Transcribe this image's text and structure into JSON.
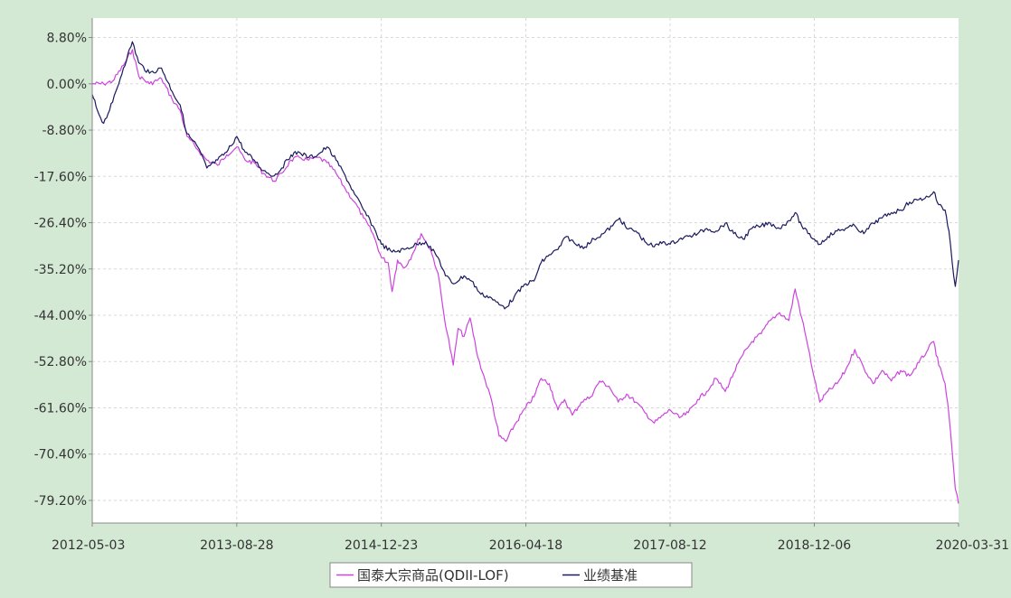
{
  "chart_data": {
    "type": "line",
    "title": "",
    "xlabel": "",
    "ylabel": "",
    "x_ticks": [
      "2012-05-03",
      "2013-08-28",
      "2014-12-23",
      "2016-04-18",
      "2017-08-12",
      "2018-12-06",
      "2020-03-31"
    ],
    "y_ticks": [
      "8.80%",
      "0.00%",
      "-8.80%",
      "-17.60%",
      "-26.40%",
      "-35.20%",
      "-44.00%",
      "-52.80%",
      "-61.60%",
      "-70.40%",
      "-79.20%"
    ],
    "xlim": [
      "2012-05-03",
      "2020-03-31"
    ],
    "ylim": [
      -83.5,
      12.5
    ],
    "grid": true,
    "legend_position": "bottom-center",
    "series": [
      {
        "name": "国泰大宗商品(QDII-LOF)",
        "color": "#cc44dd",
        "points": [
          [
            "2012-05-03",
            0.0
          ],
          [
            "2012-06-10",
            0.0
          ],
          [
            "2012-07-10",
            0.5
          ],
          [
            "2012-08-15",
            3.5
          ],
          [
            "2012-09-14",
            6.5
          ],
          [
            "2012-10-05",
            1.5
          ],
          [
            "2012-11-10",
            0.0
          ],
          [
            "2012-12-20",
            1.0
          ],
          [
            "2013-01-25",
            -3.0
          ],
          [
            "2013-02-20",
            -5.0
          ],
          [
            "2013-03-15",
            -10.0
          ],
          [
            "2013-04-20",
            -12.5
          ],
          [
            "2013-05-20",
            -14.5
          ],
          [
            "2013-06-25",
            -15.5
          ],
          [
            "2013-07-25",
            -13.5
          ],
          [
            "2013-08-28",
            -12.0
          ],
          [
            "2013-09-25",
            -14.5
          ],
          [
            "2013-10-25",
            -15.0
          ],
          [
            "2013-11-25",
            -17.0
          ],
          [
            "2013-12-31",
            -18.5
          ],
          [
            "2014-01-25",
            -17.0
          ],
          [
            "2014-02-25",
            -14.5
          ],
          [
            "2014-03-25",
            -14.0
          ],
          [
            "2014-04-25",
            -14.5
          ],
          [
            "2014-05-25",
            -14.0
          ],
          [
            "2014-06-25",
            -15.0
          ],
          [
            "2014-07-25",
            -17.0
          ],
          [
            "2014-08-25",
            -20.0
          ],
          [
            "2014-09-25",
            -22.5
          ],
          [
            "2014-10-25",
            -25.5
          ],
          [
            "2014-11-25",
            -28.5
          ],
          [
            "2014-12-23",
            -33.0
          ],
          [
            "2015-01-15",
            -34.0
          ],
          [
            "2015-01-28",
            -39.5
          ],
          [
            "2015-02-15",
            -33.5
          ],
          [
            "2015-03-10",
            -35.0
          ],
          [
            "2015-04-05",
            -32.5
          ],
          [
            "2015-05-05",
            -28.5
          ],
          [
            "2015-06-05",
            -31.5
          ],
          [
            "2015-06-30",
            -36.0
          ],
          [
            "2015-07-20",
            -44.0
          ],
          [
            "2015-08-20",
            -53.5
          ],
          [
            "2015-09-05",
            -46.5
          ],
          [
            "2015-09-25",
            -48.0
          ],
          [
            "2015-10-15",
            -44.5
          ],
          [
            "2015-11-10",
            -52.0
          ],
          [
            "2015-12-05",
            -56.5
          ],
          [
            "2015-12-25",
            -60.0
          ],
          [
            "2016-01-20",
            -67.0
          ],
          [
            "2016-02-12",
            -68.0
          ],
          [
            "2016-03-10",
            -65.0
          ],
          [
            "2016-04-18",
            -61.5
          ],
          [
            "2016-05-15",
            -59.5
          ],
          [
            "2016-06-08",
            -56.0
          ],
          [
            "2016-07-05",
            -57.0
          ],
          [
            "2016-08-03",
            -62.0
          ],
          [
            "2016-08-25",
            -60.0
          ],
          [
            "2016-09-20",
            -63.0
          ],
          [
            "2016-10-20",
            -60.5
          ],
          [
            "2016-11-20",
            -59.5
          ],
          [
            "2016-12-20",
            -56.5
          ],
          [
            "2017-01-20",
            -57.5
          ],
          [
            "2017-02-20",
            -60.5
          ],
          [
            "2017-03-20",
            -59.0
          ],
          [
            "2017-04-20",
            -60.5
          ],
          [
            "2017-05-20",
            -62.5
          ],
          [
            "2017-06-20",
            -64.5
          ],
          [
            "2017-07-20",
            -63.0
          ],
          [
            "2017-08-12",
            -62.0
          ],
          [
            "2017-09-12",
            -63.5
          ],
          [
            "2017-10-12",
            -62.5
          ],
          [
            "2017-11-12",
            -60.0
          ],
          [
            "2017-12-12",
            -58.5
          ],
          [
            "2018-01-12",
            -56.0
          ],
          [
            "2018-02-12",
            -58.5
          ],
          [
            "2018-03-12",
            -55.0
          ],
          [
            "2018-04-12",
            -51.5
          ],
          [
            "2018-05-12",
            -49.0
          ],
          [
            "2018-06-12",
            -47.5
          ],
          [
            "2018-07-12",
            -45.0
          ],
          [
            "2018-08-12",
            -43.5
          ],
          [
            "2018-09-12",
            -45.0
          ],
          [
            "2018-10-03",
            -39.0
          ],
          [
            "2018-10-25",
            -44.5
          ],
          [
            "2018-11-15",
            -50.0
          ],
          [
            "2018-12-06",
            -56.0
          ],
          [
            "2018-12-24",
            -60.5
          ],
          [
            "2019-01-20",
            -58.5
          ],
          [
            "2019-02-20",
            -57.0
          ],
          [
            "2019-03-20",
            -54.5
          ],
          [
            "2019-04-20",
            -50.5
          ],
          [
            "2019-05-20",
            -54.0
          ],
          [
            "2019-06-20",
            -57.0
          ],
          [
            "2019-07-20",
            -54.5
          ],
          [
            "2019-08-20",
            -56.5
          ],
          [
            "2019-09-20",
            -54.5
          ],
          [
            "2019-10-20",
            -55.5
          ],
          [
            "2019-11-20",
            -53.0
          ],
          [
            "2019-12-20",
            -50.5
          ],
          [
            "2020-01-08",
            -49.0
          ],
          [
            "2020-01-25",
            -53.5
          ],
          [
            "2020-02-15",
            -57.0
          ],
          [
            "2020-02-28",
            -63.0
          ],
          [
            "2020-03-10",
            -70.0
          ],
          [
            "2020-03-20",
            -77.0
          ],
          [
            "2020-03-31",
            -79.8
          ]
        ]
      },
      {
        "name": "业绩基准",
        "color": "#1a1a5e",
        "points": [
          [
            "2012-05-03",
            -2.0
          ],
          [
            "2012-05-20",
            -5.0
          ],
          [
            "2012-06-10",
            -7.5
          ],
          [
            "2012-07-10",
            -3.5
          ],
          [
            "2012-08-15",
            3.0
          ],
          [
            "2012-09-14",
            8.0
          ],
          [
            "2012-10-05",
            4.0
          ],
          [
            "2012-11-10",
            2.0
          ],
          [
            "2012-12-20",
            3.0
          ],
          [
            "2013-01-25",
            -1.5
          ],
          [
            "2013-02-20",
            -4.0
          ],
          [
            "2013-03-15",
            -9.5
          ],
          [
            "2013-04-20",
            -12.0
          ],
          [
            "2013-05-20",
            -16.0
          ],
          [
            "2013-06-25",
            -14.5
          ],
          [
            "2013-07-25",
            -13.0
          ],
          [
            "2013-08-28",
            -10.0
          ],
          [
            "2013-09-25",
            -13.0
          ],
          [
            "2013-10-25",
            -14.5
          ],
          [
            "2013-11-25",
            -16.5
          ],
          [
            "2013-12-31",
            -17.5
          ],
          [
            "2014-01-25",
            -16.0
          ],
          [
            "2014-02-25",
            -13.5
          ],
          [
            "2014-03-25",
            -13.0
          ],
          [
            "2014-04-25",
            -14.0
          ],
          [
            "2014-05-25",
            -13.5
          ],
          [
            "2014-06-25",
            -12.0
          ],
          [
            "2014-07-25",
            -14.5
          ],
          [
            "2014-08-25",
            -17.5
          ],
          [
            "2014-09-25",
            -21.0
          ],
          [
            "2014-10-25",
            -24.0
          ],
          [
            "2014-11-25",
            -27.0
          ],
          [
            "2014-12-23",
            -30.5
          ],
          [
            "2015-01-28",
            -32.0
          ],
          [
            "2015-03-10",
            -31.5
          ],
          [
            "2015-04-20",
            -30.5
          ],
          [
            "2015-05-20",
            -30.0
          ],
          [
            "2015-06-30",
            -33.0
          ],
          [
            "2015-07-25",
            -36.5
          ],
          [
            "2015-08-20",
            -38.0
          ],
          [
            "2015-09-25",
            -36.5
          ],
          [
            "2015-10-20",
            -37.5
          ],
          [
            "2015-11-20",
            -40.0
          ],
          [
            "2015-12-20",
            -40.5
          ],
          [
            "2016-01-20",
            -42.0
          ],
          [
            "2016-02-12",
            -42.5
          ],
          [
            "2016-03-10",
            -40.5
          ],
          [
            "2016-04-18",
            -38.0
          ],
          [
            "2016-05-15",
            -37.5
          ],
          [
            "2016-06-08",
            -34.0
          ],
          [
            "2016-07-05",
            -32.5
          ],
          [
            "2016-08-03",
            -31.5
          ],
          [
            "2016-09-01",
            -29.0
          ],
          [
            "2016-10-01",
            -30.5
          ],
          [
            "2016-11-01",
            -31.0
          ],
          [
            "2016-12-01",
            -29.5
          ],
          [
            "2017-01-01",
            -28.5
          ],
          [
            "2017-02-01",
            -27.0
          ],
          [
            "2017-02-25",
            -25.5
          ],
          [
            "2017-03-20",
            -27.5
          ],
          [
            "2017-04-20",
            -28.0
          ],
          [
            "2017-05-20",
            -30.0
          ],
          [
            "2017-06-20",
            -31.0
          ],
          [
            "2017-07-20",
            -30.0
          ],
          [
            "2017-08-12",
            -30.5
          ],
          [
            "2017-09-12",
            -29.5
          ],
          [
            "2017-10-12",
            -29.0
          ],
          [
            "2017-11-12",
            -28.5
          ],
          [
            "2017-12-12",
            -27.5
          ],
          [
            "2018-01-12",
            -28.0
          ],
          [
            "2018-02-12",
            -26.5
          ],
          [
            "2018-03-12",
            -28.5
          ],
          [
            "2018-04-12",
            -29.5
          ],
          [
            "2018-05-12",
            -27.5
          ],
          [
            "2018-06-12",
            -27.0
          ],
          [
            "2018-07-12",
            -26.5
          ],
          [
            "2018-08-12",
            -27.5
          ],
          [
            "2018-09-12",
            -26.0
          ],
          [
            "2018-10-03",
            -24.5
          ],
          [
            "2018-10-25",
            -27.0
          ],
          [
            "2018-11-15",
            -28.5
          ],
          [
            "2018-12-06",
            -29.5
          ],
          [
            "2018-12-24",
            -30.5
          ],
          [
            "2019-01-20",
            -29.0
          ],
          [
            "2019-02-20",
            -28.0
          ],
          [
            "2019-03-20",
            -27.5
          ],
          [
            "2019-04-20",
            -27.0
          ],
          [
            "2019-05-20",
            -28.5
          ],
          [
            "2019-06-20",
            -26.5
          ],
          [
            "2019-07-20",
            -25.5
          ],
          [
            "2019-08-20",
            -24.5
          ],
          [
            "2019-09-20",
            -24.0
          ],
          [
            "2019-10-20",
            -22.5
          ],
          [
            "2019-11-20",
            -22.0
          ],
          [
            "2019-12-20",
            -21.5
          ],
          [
            "2020-01-08",
            -20.5
          ],
          [
            "2020-01-25",
            -23.0
          ],
          [
            "2020-02-15",
            -24.0
          ],
          [
            "2020-02-28",
            -28.0
          ],
          [
            "2020-03-10",
            -34.0
          ],
          [
            "2020-03-20",
            -38.5
          ],
          [
            "2020-03-31",
            -33.5
          ]
        ]
      }
    ]
  }
}
